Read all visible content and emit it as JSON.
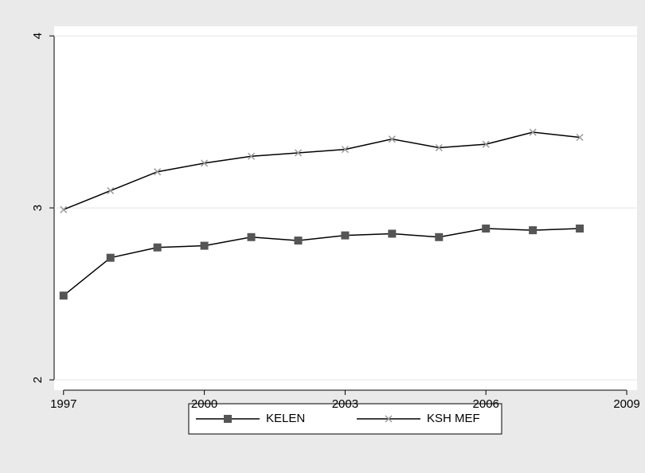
{
  "chart_data": {
    "type": "line",
    "x": [
      1997,
      1998,
      1999,
      2000,
      2001,
      2002,
      2003,
      2004,
      2005,
      2006,
      2007,
      2008
    ],
    "series": [
      {
        "name": "KELEN",
        "color": "#555555",
        "marker": "square",
        "values": [
          2.49,
          2.71,
          2.77,
          2.78,
          2.83,
          2.81,
          2.84,
          2.85,
          2.83,
          2.88,
          2.87,
          2.88
        ]
      },
      {
        "name": "KSH MEF",
        "color": "#999999",
        "marker": "x",
        "values": [
          2.99,
          3.1,
          3.21,
          3.26,
          3.3,
          3.32,
          3.34,
          3.4,
          3.35,
          3.37,
          3.44,
          3.41
        ]
      }
    ],
    "line_color": "#000000",
    "xlim": [
      1996.8,
      2009.22
    ],
    "xticks": [
      1997,
      2000,
      2003,
      2006,
      2009
    ],
    "ylim": [
      1.94,
      4.056
    ],
    "yticks": [
      2,
      3,
      4
    ],
    "grid": true,
    "legend": "bottom"
  }
}
